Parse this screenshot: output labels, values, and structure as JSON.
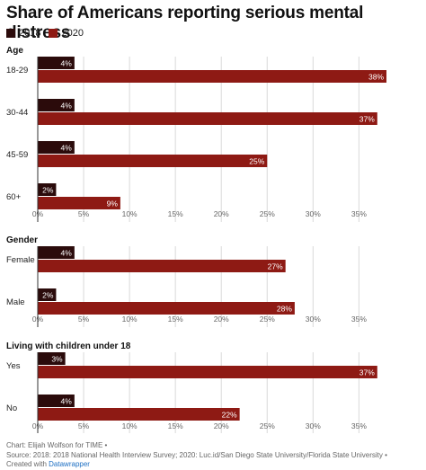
{
  "colors": {
    "series_2018": "#2b0b0b",
    "series_2020": "#8e1a14",
    "grid": "#d9d9d9",
    "axis_text": "#666666"
  },
  "chart_data": {
    "type": "bar",
    "orientation": "horizontal",
    "title": "Share of Americans reporting serious mental distress",
    "series_names": [
      "2018",
      "2020"
    ],
    "xlim": [
      0,
      38
    ],
    "ticks": [
      0,
      5,
      10,
      15,
      20,
      25,
      30,
      35
    ],
    "tick_suffix": "%",
    "legend_position": "top-left",
    "grid": true,
    "panels": [
      {
        "title": "Age",
        "categories": [
          "18-29",
          "30-44",
          "45-59",
          "60+"
        ],
        "series": [
          {
            "name": "2018",
            "values": [
              4,
              4,
              4,
              2
            ],
            "labels": [
              "4%",
              "4%",
              "4%",
              "2%"
            ]
          },
          {
            "name": "2020",
            "values": [
              38,
              37,
              25,
              9
            ],
            "labels": [
              "38%",
              "37%",
              "25%",
              "9%"
            ]
          }
        ]
      },
      {
        "title": "Gender",
        "categories": [
          "Female",
          "Male"
        ],
        "series": [
          {
            "name": "2018",
            "values": [
              4,
              2
            ],
            "labels": [
              "4%",
              "2%"
            ]
          },
          {
            "name": "2020",
            "values": [
              27,
              28
            ],
            "labels": [
              "27%",
              "28%"
            ]
          }
        ]
      },
      {
        "title": "Living with children under 18",
        "categories": [
          "Yes",
          "No"
        ],
        "series": [
          {
            "name": "2018",
            "values": [
              3,
              4
            ],
            "labels": [
              "3%",
              "4%"
            ]
          },
          {
            "name": "2020",
            "values": [
              37,
              22
            ],
            "labels": [
              "37%",
              "22%"
            ]
          }
        ]
      }
    ]
  },
  "footer": {
    "line1": "Chart: Elijah Wolfson for TIME •",
    "line2": "Source: 2018: 2018 National Health Interview Survey; 2020: Luc.id/San Diego State University/Florida State University •",
    "line3_prefix": "Created with",
    "line3_link": "Datawrapper"
  }
}
